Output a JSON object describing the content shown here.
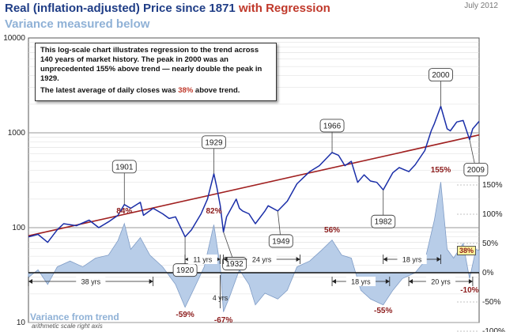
{
  "header": {
    "title_main": "Real (inflation-adjusted) Price since 1871 ",
    "title_highlight": "with Regression",
    "subtitle": "Variance measured below",
    "date": "July 2012"
  },
  "note": {
    "para1": "This log-scale chart illustrates regression to the trend across 140 years of market history. The peak in 2000 was an unprecedented 155% above trend — nearly double the peak in 1929.",
    "para2_before": "The latest average of daily closes was ",
    "para2_value": "38%",
    "para2_after": " above trend."
  },
  "variance_panel": {
    "title": "Variance from trend",
    "subtitle": "arithmetic scale right axis",
    "latest_badge": "38%"
  },
  "colors": {
    "price_line": "#1a2ea8",
    "regression_line": "#a02020",
    "variance_fill": "#b8cde8",
    "variance_stroke": "#7f9cc6",
    "accent_red": "#c0392b",
    "title_blue": "#1f3d86"
  },
  "chart_data": [
    {
      "type": "line",
      "title": "Real (inflation-adjusted) Price since 1871 with Regression",
      "y_scale": "log",
      "ylim": [
        10,
        10000
      ],
      "xlim": [
        1871,
        2012
      ],
      "y_ticks": [
        "10",
        "100",
        "1000",
        "10000"
      ],
      "grid": true,
      "series": [
        {
          "x": [
            1871,
            1874,
            1877,
            1880,
            1882,
            1886,
            1890,
            1893,
            1896,
            1899,
            1901,
            1903,
            1906,
            1907,
            1910,
            1913,
            1915,
            1917,
            1920,
            1922,
            1925,
            1927,
            1929,
            1930,
            1931,
            1932,
            1933,
            1936,
            1937,
            1938,
            1940,
            1942,
            1945,
            1946,
            1949,
            1952,
            1955,
            1959,
            1962,
            1966,
            1968,
            1970,
            1972,
            1974,
            1976,
            1978,
            1980,
            1982,
            1985,
            1987,
            1990,
            1992,
            1995,
            1997,
            1998,
            2000,
            2002,
            2003,
            2005,
            2007,
            2009,
            2010,
            2012
          ],
          "y": [
            80,
            85,
            70,
            95,
            110,
            105,
            120,
            100,
            115,
            135,
            175,
            160,
            185,
            135,
            160,
            140,
            125,
            130,
            80,
            95,
            140,
            200,
            370,
            260,
            170,
            90,
            130,
            200,
            160,
            150,
            140,
            110,
            150,
            170,
            150,
            190,
            290,
            390,
            450,
            620,
            580,
            450,
            500,
            300,
            360,
            310,
            300,
            250,
            380,
            430,
            390,
            460,
            650,
            1050,
            1250,
            1900,
            1100,
            1050,
            1300,
            1350,
            850,
            1100,
            1320
          ]
        },
        {
          "name": "trend",
          "x": [
            1871,
            2012
          ],
          "y": [
            82,
            950
          ]
        }
      ],
      "annotations": [
        {
          "label": "1901",
          "x": 1901
        },
        {
          "label": "1920",
          "x": 1920
        },
        {
          "label": "1929",
          "x": 1929
        },
        {
          "label": "1932",
          "x": 1932
        },
        {
          "label": "1949",
          "x": 1949
        },
        {
          "label": "1966",
          "x": 1966
        },
        {
          "label": "1982",
          "x": 1982
        },
        {
          "label": "2000",
          "x": 2000
        },
        {
          "label": "2009",
          "x": 2009
        }
      ]
    },
    {
      "type": "area",
      "title": "Variance from trend",
      "ylabel": "arithmetic scale right axis",
      "ylim": [
        -100,
        150
      ],
      "y_ticks": [
        "150%",
        "100%",
        "50%",
        "0%",
        "-50%",
        "-100%"
      ],
      "series": [
        {
          "x": [
            1871,
            1874,
            1877,
            1880,
            1884,
            1888,
            1892,
            1896,
            1899,
            1901,
            1903,
            1906,
            1909,
            1913,
            1917,
            1920,
            1923,
            1926,
            1929,
            1931,
            1932,
            1934,
            1937,
            1940,
            1942,
            1945,
            1949,
            1952,
            1955,
            1959,
            1963,
            1966,
            1969,
            1972,
            1975,
            1978,
            1982,
            1985,
            1988,
            1992,
            1995,
            1998,
            2000,
            2002,
            2004,
            2007,
            2009,
            2011,
            2012
          ],
          "y": [
            -8,
            5,
            -20,
            10,
            20,
            10,
            25,
            30,
            55,
            84,
            40,
            60,
            30,
            10,
            -20,
            -59,
            -25,
            10,
            82,
            10,
            -67,
            -40,
            5,
            -20,
            -55,
            -35,
            -45,
            -30,
            10,
            20,
            40,
            56,
            30,
            25,
            -30,
            -45,
            -55,
            -30,
            -10,
            0,
            20,
            90,
            155,
            40,
            25,
            50,
            -10,
            40,
            38
          ]
        }
      ],
      "labels": [
        {
          "text": "84%",
          "x": 1901
        },
        {
          "text": "82%",
          "x": 1929
        },
        {
          "text": "-59%",
          "x": 1920
        },
        {
          "text": "-67%",
          "x": 1932
        },
        {
          "text": "56%",
          "x": 1966
        },
        {
          "text": "-55%",
          "x": 1982
        },
        {
          "text": "155%",
          "x": 2000
        },
        {
          "text": "-10%",
          "x": 2009
        }
      ],
      "spans": [
        {
          "text": "38 yrs",
          "from": 1871,
          "to": 1910
        },
        {
          "text": "11 yrs",
          "from": 1920,
          "to": 1931
        },
        {
          "text": "4 yrs",
          "from": 1929,
          "to": 1933
        },
        {
          "text": "24 yrs",
          "from": 1932,
          "to": 1956
        },
        {
          "text": "18 yrs",
          "from": 1966,
          "to": 1984
        },
        {
          "text": "18 yrs",
          "from": 1982,
          "to": 2000
        },
        {
          "text": "20 yrs",
          "from": 1990,
          "to": 2010
        }
      ]
    }
  ]
}
